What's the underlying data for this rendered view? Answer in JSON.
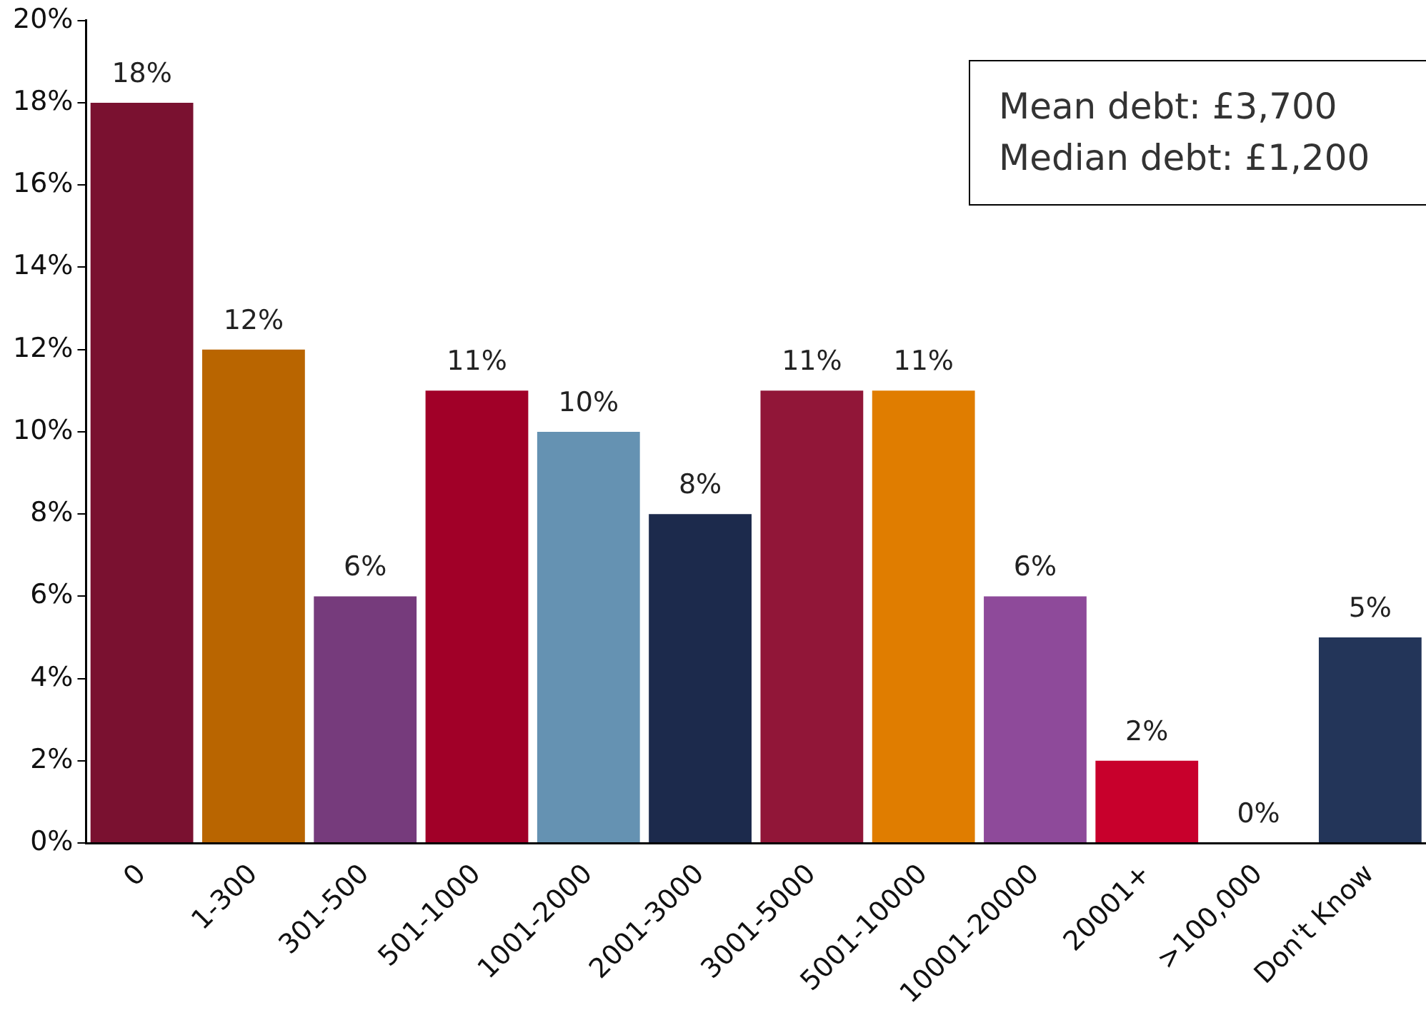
{
  "chart_data": {
    "type": "bar",
    "categories": [
      "0",
      "1-300",
      "301-500",
      "501-1000",
      "1001-2000",
      "2001-3000",
      "3001-5000",
      "5001-10000",
      "10001-20000",
      "20001+",
      ">100,000",
      "Don't Know"
    ],
    "values": [
      18,
      12,
      6,
      11,
      10,
      8,
      11,
      11,
      6,
      2,
      0,
      5
    ],
    "value_labels": [
      "18%",
      "12%",
      "6%",
      "11%",
      "10%",
      "8%",
      "11%",
      "11%",
      "6%",
      "2%",
      "0%",
      "5%"
    ],
    "colors": [
      "#7a1130",
      "#b96500",
      "#763b7c",
      "#a10028",
      "#6592b2",
      "#1c2a4c",
      "#911638",
      "#e07d00",
      "#8e4a9a",
      "#c8002c",
      "#c8002c",
      "#233559"
    ],
    "ylim": [
      0,
      20
    ],
    "yticks": [
      {
        "value": 0,
        "label": "0%"
      },
      {
        "value": 2,
        "label": "2%"
      },
      {
        "value": 4,
        "label": "4%"
      },
      {
        "value": 6,
        "label": "6%"
      },
      {
        "value": 8,
        "label": "8%"
      },
      {
        "value": 10,
        "label": "10%"
      },
      {
        "value": 12,
        "label": "12%"
      },
      {
        "value": 14,
        "label": "14%"
      },
      {
        "value": 16,
        "label": "16%"
      },
      {
        "value": 18,
        "label": "18%"
      },
      {
        "value": 20,
        "label": "20%"
      }
    ],
    "annotations": [
      "Mean debt: £3,700",
      "Median debt: £1,200"
    ]
  }
}
